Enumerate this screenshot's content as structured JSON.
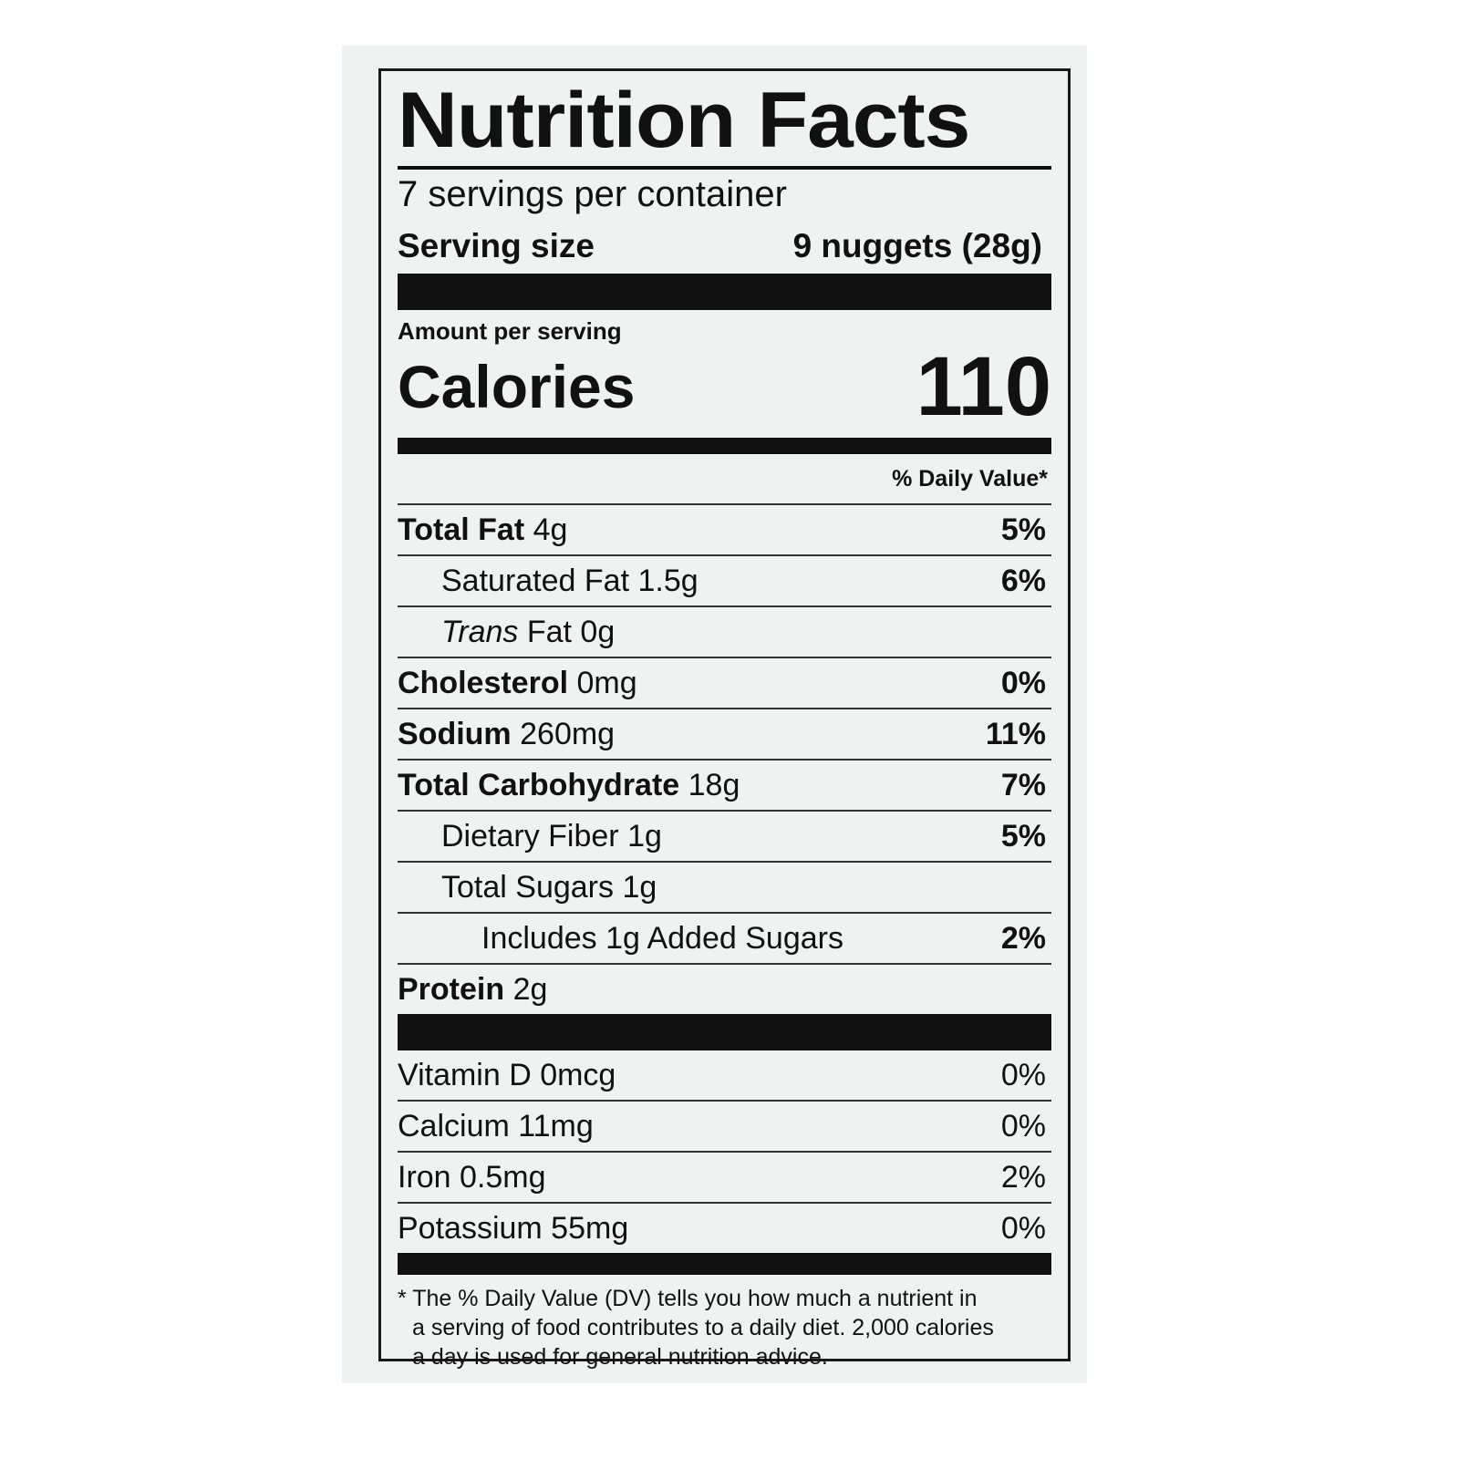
{
  "title": "Nutrition Facts",
  "servings_per_container": "7 servings per container",
  "serving_size": {
    "label": "Serving size",
    "value": "9 nuggets (28g)"
  },
  "amount_per_serving": "Amount per serving",
  "calories": {
    "label": "Calories",
    "value": "110"
  },
  "daily_value_header": "% Daily Value*",
  "nutrients": [
    {
      "name": "Total Fat",
      "amount": "4g",
      "dv": "5%"
    },
    {
      "name": "Saturated Fat",
      "amount": "1.5g",
      "dv": "6%"
    },
    {
      "name": "Trans",
      "name_rest": "Fat",
      "amount": "0g",
      "dv": ""
    },
    {
      "name": "Cholesterol",
      "amount": "0mg",
      "dv": "0%"
    },
    {
      "name": "Sodium",
      "amount": "260mg",
      "dv": "11%"
    },
    {
      "name": "Total Carbohydrate",
      "amount": "18g",
      "dv": "7%"
    },
    {
      "name": "Dietary Fiber",
      "amount": "1g",
      "dv": "5%"
    },
    {
      "name": "Total Sugars",
      "amount": "1g",
      "dv": ""
    },
    {
      "name": "Includes 1g Added Sugars",
      "amount": "",
      "dv": "2%"
    },
    {
      "name": "Protein",
      "amount": "2g",
      "dv": ""
    }
  ],
  "vitamins": [
    {
      "text": "Vitamin D 0mcg",
      "dv": "0%"
    },
    {
      "text": "Calcium 11mg",
      "dv": "0%"
    },
    {
      "text": "Iron 0.5mg",
      "dv": "2%"
    },
    {
      "text": "Potassium 55mg",
      "dv": "0%"
    }
  ],
  "footnote": {
    "line1": "* The % Daily Value (DV) tells you how much a nutrient in",
    "line2": "a serving of food contributes to a daily diet. 2,000 calories",
    "line3": "a day is used for general nutrition advice."
  }
}
